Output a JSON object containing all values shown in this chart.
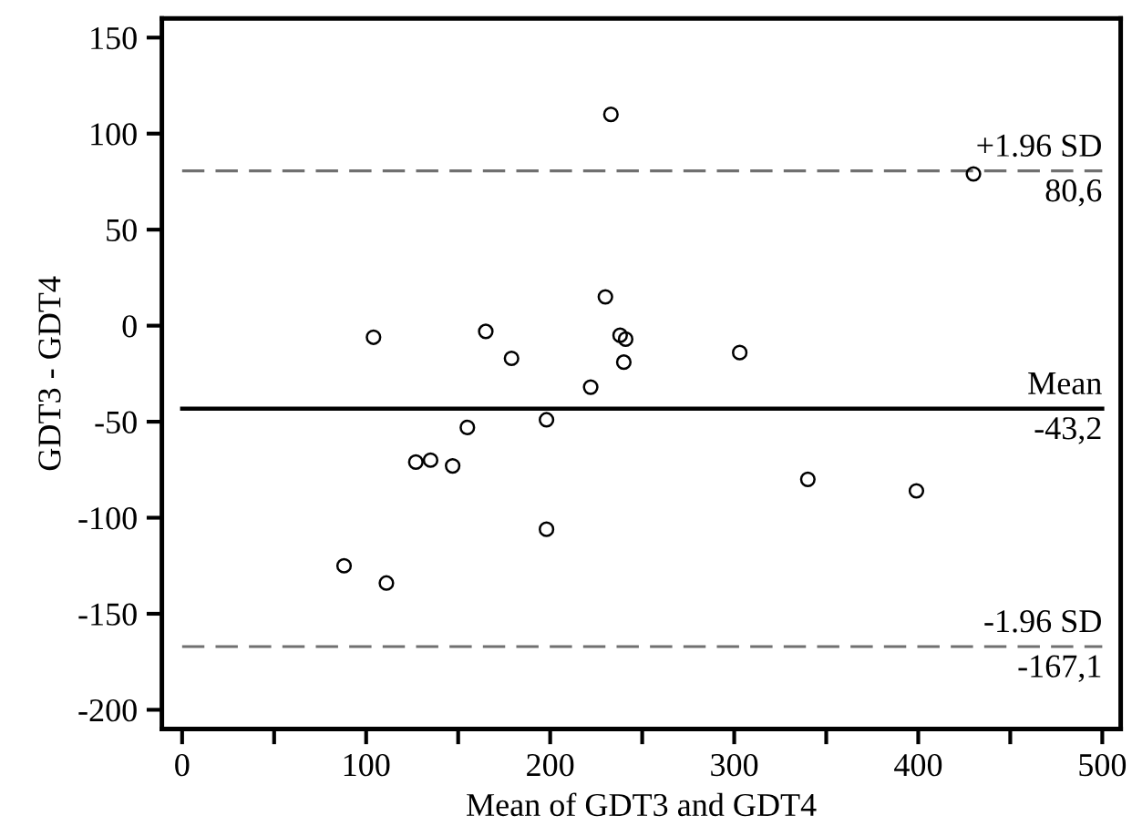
{
  "chart_data": {
    "type": "scatter",
    "xlabel": "Mean of GDT3 and GDT4",
    "ylabel": "GDT3 - GDT4",
    "series": [
      {
        "color": "#000000",
        "x": [
          104,
          165,
          179,
          233,
          230,
          238,
          241,
          240,
          222,
          198,
          155,
          127,
          135,
          147,
          198,
          88,
          111,
          303,
          340,
          399,
          430
        ],
        "values": [
          -6,
          -3,
          -17,
          110,
          15,
          -5,
          -7,
          -19,
          -32,
          -49,
          -53,
          -71,
          -70,
          -73,
          -106,
          -125,
          -134,
          -14,
          -80,
          -86,
          79
        ]
      }
    ],
    "marker": "circle",
    "grid": false,
    "legend": false,
    "xlim": [
      -11,
      510
    ],
    "ylim": [
      -210,
      160
    ],
    "xticks": [
      0,
      {
        "value": 50,
        "label": null
      },
      100,
      {
        "value": 150,
        "label": null
      },
      200,
      {
        "value": 250,
        "label": null
      },
      300,
      {
        "value": 350,
        "label": null
      },
      400,
      {
        "value": 450,
        "label": null
      },
      500
    ],
    "yticks": [
      -200,
      -150,
      -100,
      -50,
      0,
      50,
      100,
      150
    ],
    "ref_lines": [
      {
        "axis": "y",
        "value": 80.6,
        "label": "+1.96 SD",
        "color": "#707070",
        "line_style": "dashed"
      },
      {
        "axis": "y",
        "value": -43.2,
        "label": "Mean",
        "color": "#000000",
        "line_style": "solid"
      },
      {
        "axis": "y",
        "value": -167.1,
        "label": "-1.96 SD",
        "color": "#707070",
        "line_style": "dashed"
      }
    ],
    "annotations": [
      {
        "text": "80,6",
        "y": 80.6
      },
      {
        "text": "-43,2",
        "y": -43.2
      },
      {
        "text": "-167,1",
        "y": -167.1
      }
    ]
  }
}
